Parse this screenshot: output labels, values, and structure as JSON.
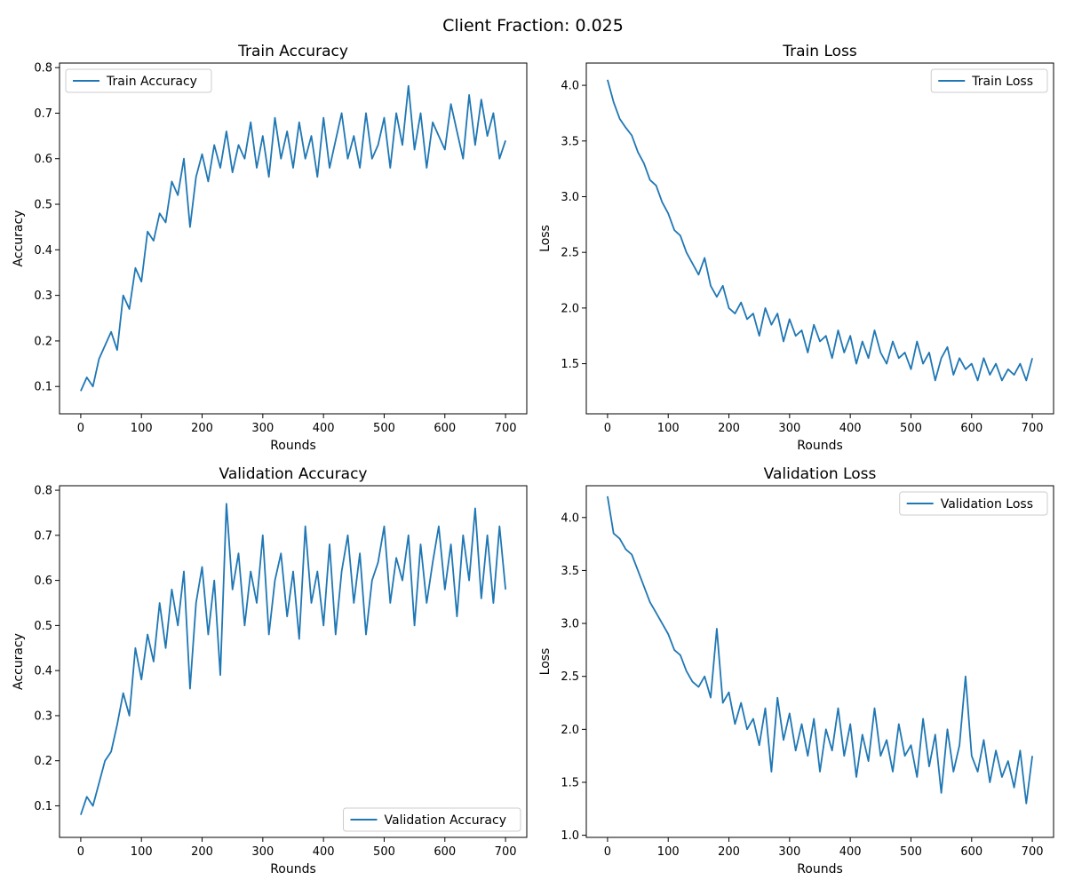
{
  "figure": {
    "suptitle": "Client Fraction: 0.025",
    "line_color": "#1f77b4"
  },
  "chart_data": [
    {
      "type": "line",
      "title": "Train Accuracy",
      "xlabel": "Rounds",
      "ylabel": "Accuracy",
      "xlim": [
        -35,
        735
      ],
      "ylim": [
        0.04,
        0.81
      ],
      "xticks": [
        0,
        100,
        200,
        300,
        400,
        500,
        600,
        700
      ],
      "yticks": [
        0.1,
        0.2,
        0.3,
        0.4,
        0.5,
        0.6,
        0.7,
        0.8
      ],
      "ytick_labels": [
        "0.1",
        "0.2",
        "0.3",
        "0.4",
        "0.5",
        "0.6",
        "0.7",
        "0.8"
      ],
      "legend": "upper-left",
      "legend_label": "Train Accuracy",
      "grid": false,
      "series": [
        {
          "name": "Train Accuracy",
          "x": [
            0,
            10,
            20,
            30,
            40,
            50,
            60,
            70,
            80,
            90,
            100,
            110,
            120,
            130,
            140,
            150,
            160,
            170,
            180,
            190,
            200,
            210,
            220,
            230,
            240,
            250,
            260,
            270,
            280,
            290,
            300,
            310,
            320,
            330,
            340,
            350,
            360,
            370,
            380,
            390,
            400,
            410,
            420,
            430,
            440,
            450,
            460,
            470,
            480,
            490,
            500,
            510,
            520,
            530,
            540,
            550,
            560,
            570,
            580,
            590,
            600,
            610,
            620,
            630,
            640,
            650,
            660,
            670,
            680,
            690,
            700
          ],
          "y": [
            0.09,
            0.12,
            0.1,
            0.16,
            0.19,
            0.22,
            0.18,
            0.3,
            0.27,
            0.36,
            0.33,
            0.44,
            0.42,
            0.48,
            0.46,
            0.55,
            0.52,
            0.6,
            0.45,
            0.56,
            0.61,
            0.55,
            0.63,
            0.58,
            0.66,
            0.57,
            0.63,
            0.6,
            0.68,
            0.58,
            0.65,
            0.56,
            0.69,
            0.6,
            0.66,
            0.58,
            0.68,
            0.6,
            0.65,
            0.56,
            0.69,
            0.58,
            0.64,
            0.7,
            0.6,
            0.65,
            0.58,
            0.7,
            0.6,
            0.63,
            0.69,
            0.58,
            0.7,
            0.63,
            0.76,
            0.62,
            0.7,
            0.58,
            0.68,
            0.65,
            0.62,
            0.72,
            0.66,
            0.6,
            0.74,
            0.63,
            0.73,
            0.65,
            0.7,
            0.6,
            0.64
          ]
        }
      ]
    },
    {
      "type": "line",
      "title": "Train Loss",
      "xlabel": "Rounds",
      "ylabel": "Loss",
      "xlim": [
        -35,
        735
      ],
      "ylim": [
        1.05,
        4.2
      ],
      "xticks": [
        0,
        100,
        200,
        300,
        400,
        500,
        600,
        700
      ],
      "yticks": [
        1.5,
        2.0,
        2.5,
        3.0,
        3.5,
        4.0
      ],
      "ytick_labels": [
        "1.5",
        "2.0",
        "2.5",
        "3.0",
        "3.5",
        "4.0"
      ],
      "legend": "upper-right",
      "legend_label": "Train Loss",
      "grid": false,
      "series": [
        {
          "name": "Train Loss",
          "x": [
            0,
            10,
            20,
            30,
            40,
            50,
            60,
            70,
            80,
            90,
            100,
            110,
            120,
            130,
            140,
            150,
            160,
            170,
            180,
            190,
            200,
            210,
            220,
            230,
            240,
            250,
            260,
            270,
            280,
            290,
            300,
            310,
            320,
            330,
            340,
            350,
            360,
            370,
            380,
            390,
            400,
            410,
            420,
            430,
            440,
            450,
            460,
            470,
            480,
            490,
            500,
            510,
            520,
            530,
            540,
            550,
            560,
            570,
            580,
            590,
            600,
            610,
            620,
            630,
            640,
            650,
            660,
            670,
            680,
            690,
            700
          ],
          "y": [
            4.05,
            3.85,
            3.7,
            3.62,
            3.55,
            3.4,
            3.3,
            3.15,
            3.1,
            2.95,
            2.85,
            2.7,
            2.65,
            2.5,
            2.4,
            2.3,
            2.45,
            2.2,
            2.1,
            2.2,
            2.0,
            1.95,
            2.05,
            1.9,
            1.95,
            1.75,
            2.0,
            1.85,
            1.95,
            1.7,
            1.9,
            1.75,
            1.8,
            1.6,
            1.85,
            1.7,
            1.75,
            1.55,
            1.8,
            1.6,
            1.75,
            1.5,
            1.7,
            1.55,
            1.8,
            1.6,
            1.5,
            1.7,
            1.55,
            1.6,
            1.45,
            1.7,
            1.5,
            1.6,
            1.35,
            1.55,
            1.65,
            1.4,
            1.55,
            1.45,
            1.5,
            1.35,
            1.55,
            1.4,
            1.5,
            1.35,
            1.45,
            1.4,
            1.5,
            1.35,
            1.55
          ]
        }
      ]
    },
    {
      "type": "line",
      "title": "Validation Accuracy",
      "xlabel": "Rounds",
      "ylabel": "Accuracy",
      "xlim": [
        -35,
        735
      ],
      "ylim": [
        0.03,
        0.81
      ],
      "xticks": [
        0,
        100,
        200,
        300,
        400,
        500,
        600,
        700
      ],
      "yticks": [
        0.1,
        0.2,
        0.3,
        0.4,
        0.5,
        0.6,
        0.7,
        0.8
      ],
      "ytick_labels": [
        "0.1",
        "0.2",
        "0.3",
        "0.4",
        "0.5",
        "0.6",
        "0.7",
        "0.8"
      ],
      "legend": "lower-right",
      "legend_label": "Validation Accuracy",
      "grid": false,
      "series": [
        {
          "name": "Validation Accuracy",
          "x": [
            0,
            10,
            20,
            30,
            40,
            50,
            60,
            70,
            80,
            90,
            100,
            110,
            120,
            130,
            140,
            150,
            160,
            170,
            180,
            190,
            200,
            210,
            220,
            230,
            240,
            250,
            260,
            270,
            280,
            290,
            300,
            310,
            320,
            330,
            340,
            350,
            360,
            370,
            380,
            390,
            400,
            410,
            420,
            430,
            440,
            450,
            460,
            470,
            480,
            490,
            500,
            510,
            520,
            530,
            540,
            550,
            560,
            570,
            580,
            590,
            600,
            610,
            620,
            630,
            640,
            650,
            660,
            670,
            680,
            690,
            700
          ],
          "y": [
            0.08,
            0.12,
            0.1,
            0.15,
            0.2,
            0.22,
            0.28,
            0.35,
            0.3,
            0.45,
            0.38,
            0.48,
            0.42,
            0.55,
            0.45,
            0.58,
            0.5,
            0.62,
            0.36,
            0.55,
            0.63,
            0.48,
            0.6,
            0.39,
            0.77,
            0.58,
            0.66,
            0.5,
            0.62,
            0.55,
            0.7,
            0.48,
            0.6,
            0.66,
            0.52,
            0.62,
            0.47,
            0.72,
            0.55,
            0.62,
            0.5,
            0.68,
            0.48,
            0.62,
            0.7,
            0.55,
            0.66,
            0.48,
            0.6,
            0.64,
            0.72,
            0.55,
            0.65,
            0.6,
            0.7,
            0.5,
            0.68,
            0.55,
            0.64,
            0.72,
            0.58,
            0.68,
            0.52,
            0.7,
            0.6,
            0.76,
            0.56,
            0.7,
            0.55,
            0.72,
            0.58
          ]
        }
      ]
    },
    {
      "type": "line",
      "title": "Validation Loss",
      "xlabel": "Rounds",
      "ylabel": "Loss",
      "xlim": [
        -35,
        735
      ],
      "ylim": [
        0.98,
        4.3
      ],
      "xticks": [
        0,
        100,
        200,
        300,
        400,
        500,
        600,
        700
      ],
      "yticks": [
        1.0,
        1.5,
        2.0,
        2.5,
        3.0,
        3.5,
        4.0
      ],
      "ytick_labels": [
        "1.0",
        "1.5",
        "2.0",
        "2.5",
        "3.0",
        "3.5",
        "4.0"
      ],
      "legend": "upper-right",
      "legend_label": "Validation Loss",
      "grid": false,
      "series": [
        {
          "name": "Validation Loss",
          "x": [
            0,
            10,
            20,
            30,
            40,
            50,
            60,
            70,
            80,
            90,
            100,
            110,
            120,
            130,
            140,
            150,
            160,
            170,
            180,
            190,
            200,
            210,
            220,
            230,
            240,
            250,
            260,
            270,
            280,
            290,
            300,
            310,
            320,
            330,
            340,
            350,
            360,
            370,
            380,
            390,
            400,
            410,
            420,
            430,
            440,
            450,
            460,
            470,
            480,
            490,
            500,
            510,
            520,
            530,
            540,
            550,
            560,
            570,
            580,
            590,
            600,
            610,
            620,
            630,
            640,
            650,
            660,
            670,
            680,
            690,
            700
          ],
          "y": [
            4.2,
            3.85,
            3.8,
            3.7,
            3.65,
            3.5,
            3.35,
            3.2,
            3.1,
            3.0,
            2.9,
            2.75,
            2.7,
            2.55,
            2.45,
            2.4,
            2.5,
            2.3,
            2.95,
            2.25,
            2.35,
            2.05,
            2.25,
            2.0,
            2.1,
            1.85,
            2.2,
            1.6,
            2.3,
            1.9,
            2.15,
            1.8,
            2.05,
            1.75,
            2.1,
            1.6,
            2.0,
            1.8,
            2.2,
            1.75,
            2.05,
            1.55,
            1.95,
            1.7,
            2.2,
            1.75,
            1.9,
            1.6,
            2.05,
            1.75,
            1.85,
            1.55,
            2.1,
            1.65,
            1.95,
            1.4,
            2.0,
            1.6,
            1.85,
            2.5,
            1.75,
            1.6,
            1.9,
            1.5,
            1.8,
            1.55,
            1.7,
            1.45,
            1.8,
            1.3,
            1.75
          ]
        }
      ]
    }
  ]
}
